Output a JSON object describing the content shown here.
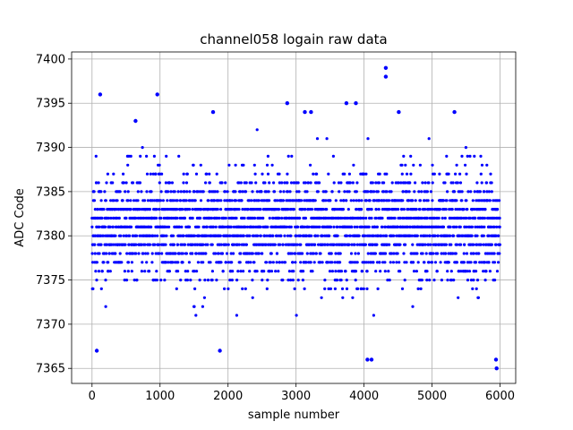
{
  "chart_data": {
    "type": "scatter",
    "title": "channel058 logain raw data",
    "xlabel": "sample number",
    "ylabel": "ADC Code",
    "xlim": [
      -300,
      6230
    ],
    "ylim": [
      7363.3,
      7400.8
    ],
    "xticks": [
      0,
      1000,
      2000,
      3000,
      4000,
      5000,
      6000
    ],
    "yticks": [
      7365,
      7370,
      7375,
      7380,
      7385,
      7390,
      7395,
      7400
    ],
    "grid": true,
    "marker_color": "#0000ff",
    "series": [
      {
        "n_samples": 6000,
        "x_start": 0,
        "x_step": 1,
        "level_min": 7371,
        "level_max": 7390,
        "outliers": [
          {
            "x": 70,
            "y": 7367
          },
          {
            "x": 120,
            "y": 7396
          },
          {
            "x": 640,
            "y": 7393
          },
          {
            "x": 960,
            "y": 7396
          },
          {
            "x": 1780,
            "y": 7394
          },
          {
            "x": 1880,
            "y": 7367
          },
          {
            "x": 2870,
            "y": 7395
          },
          {
            "x": 3130,
            "y": 7394
          },
          {
            "x": 3220,
            "y": 7394
          },
          {
            "x": 3740,
            "y": 7395
          },
          {
            "x": 3880,
            "y": 7395
          },
          {
            "x": 4050,
            "y": 7366
          },
          {
            "x": 4110,
            "y": 7366
          },
          {
            "x": 4320,
            "y": 7399
          },
          {
            "x": 4320,
            "y": 7398
          },
          {
            "x": 4510,
            "y": 7394
          },
          {
            "x": 5330,
            "y": 7394
          },
          {
            "x": 5940,
            "y": 7366
          },
          {
            "x": 5950,
            "y": 7365
          }
        ]
      }
    ]
  }
}
